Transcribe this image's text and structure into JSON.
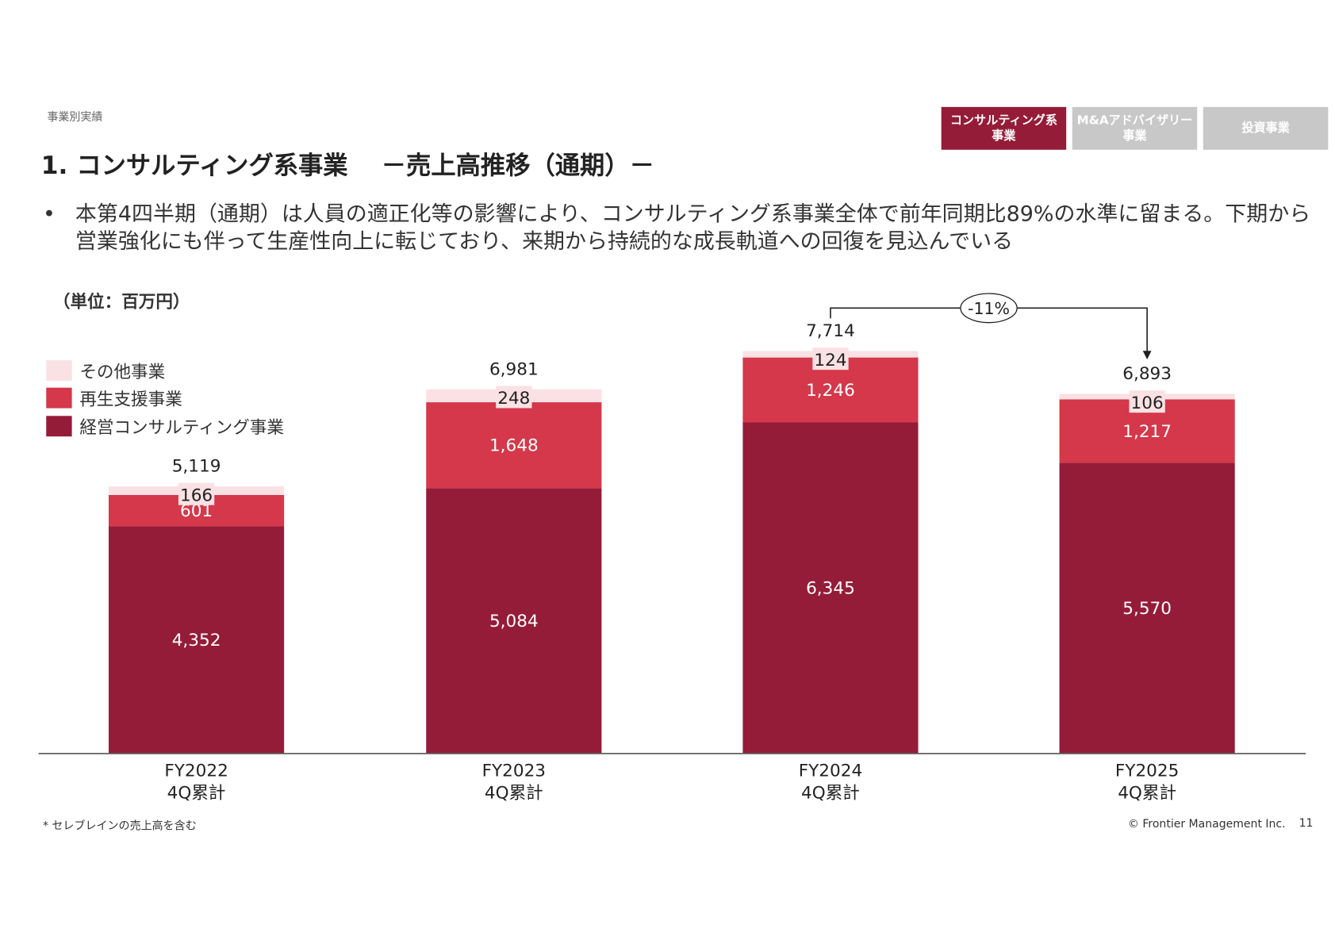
{
  "breadcrumb": "事業別実績",
  "title": "1. コンサルティング系事業　 －売上高推移（通期）－",
  "tabs": [
    {
      "label": "コンサルティング系\n事業",
      "active": true
    },
    {
      "label": "M&Aアドバイザリー\n事業",
      "active": false
    },
    {
      "label": "投資事業",
      "active": false
    }
  ],
  "bullet": {
    "marker": "•",
    "text": "本第4四半期（通期）は人員の適正化等の影響により、コンサルティング系事業全体で前年同期比89%の水準に留まる。下期から営業強化にも伴って生産性向上に転じており、来期から持続的な成長軌道への回復を見込んでいる"
  },
  "footnote": "* セレブレインの売上高を含む",
  "copyright": "© Frontier Management Inc.",
  "page_number": "11",
  "colors": {
    "accent": "#951c38",
    "inactive_tab": "#c8c8c8"
  },
  "chart_data": {
    "type": "bar",
    "stacked": true,
    "unit_label": "（単位：百万円）",
    "categories": [
      [
        "FY2022",
        "4Q累計"
      ],
      [
        "FY2023",
        "4Q累計"
      ],
      [
        "FY2024",
        "4Q累計"
      ],
      [
        "FY2025",
        "4Q累計"
      ]
    ],
    "series": [
      {
        "name": "経営コンサルティング事業",
        "color": "#951c38",
        "values": [
          4352,
          5084,
          6345,
          5570
        ],
        "labels": [
          "4,352",
          "5,084",
          "6,345",
          "5,570"
        ]
      },
      {
        "name": "再生支援事業",
        "color": "#d4384a",
        "values": [
          601,
          1648,
          1246,
          1217
        ],
        "labels": [
          "601",
          "1,648",
          "1,246",
          "1,217"
        ]
      },
      {
        "name": "その他事業",
        "color": "#f9e1e4",
        "values": [
          166,
          248,
          124,
          106
        ],
        "labels": [
          "166",
          "248",
          "124",
          "106"
        ]
      }
    ],
    "totals": [
      5119,
      6981,
      7714,
      6893
    ],
    "total_labels": [
      "5,119",
      "6,981",
      "7,714",
      "6,893"
    ],
    "legend_order": [
      "その他事業",
      "再生支援事業",
      "経営コンサルティング事業"
    ],
    "legend_position": "top-left",
    "annotation": {
      "from": "FY2024",
      "to": "FY2025",
      "text": "-11%"
    },
    "grid": false,
    "ylim": [
      0,
      8500
    ]
  }
}
